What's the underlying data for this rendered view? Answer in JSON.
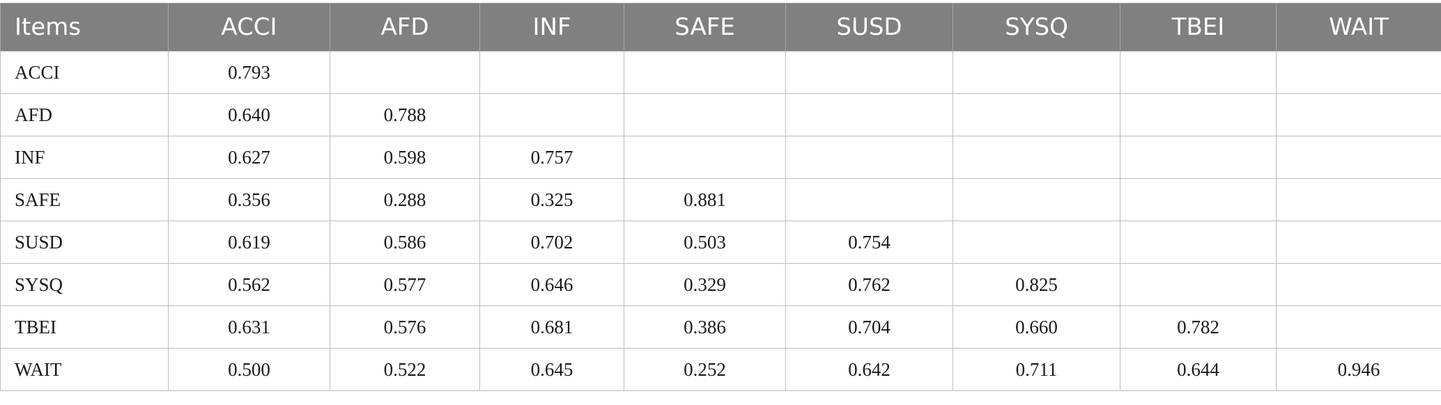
{
  "table": {
    "headers": [
      "Items",
      "ACCI",
      "AFD",
      "INF",
      "SAFE",
      "SUSD",
      "SYSQ",
      "TBEI",
      "WAIT"
    ],
    "rows": [
      [
        "ACCI",
        "0.793",
        "",
        "",
        "",
        "",
        "",
        "",
        ""
      ],
      [
        "AFD",
        "0.640",
        "0.788",
        "",
        "",
        "",
        "",
        "",
        ""
      ],
      [
        "INF",
        "0.627",
        "0.598",
        "0.757",
        "",
        "",
        "",
        "",
        ""
      ],
      [
        "SAFE",
        "0.356",
        "0.288",
        "0.325",
        "0.881",
        "",
        "",
        "",
        ""
      ],
      [
        "SUSD",
        "0.619",
        "0.586",
        "0.702",
        "0.503",
        "0.754",
        "",
        "",
        ""
      ],
      [
        "SYSQ",
        "0.562",
        "0.577",
        "0.646",
        "0.329",
        "0.762",
        "0.825",
        "",
        ""
      ],
      [
        "TBEI",
        "0.631",
        "0.576",
        "0.681",
        "0.386",
        "0.704",
        "0.660",
        "0.782",
        ""
      ],
      [
        "WAIT",
        "0.500",
        "0.522",
        "0.645",
        "0.252",
        "0.642",
        "0.711",
        "0.644",
        "0.946"
      ]
    ]
  }
}
